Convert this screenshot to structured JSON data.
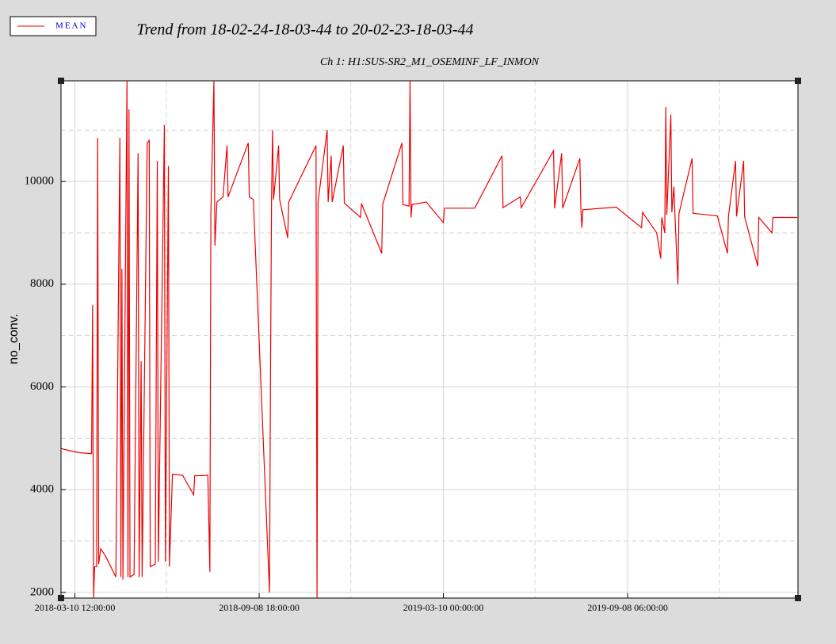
{
  "chart_data": {
    "type": "line",
    "title": "Trend from 18-02-24-18-03-44 to 20-02-23-18-03-44",
    "subtitle": "Ch 1: H1:SUS-SR2_M1_OSEMINF_LF_INMON",
    "y_label": "no_conv.",
    "xlim": [
      "2018-02-24 18:03:44",
      "2020-02-23 18:03:44"
    ],
    "xticks": [
      "2018-03-10 12:00:00",
      "2018-09-08 18:00:00",
      "2019-03-10 00:00:00",
      "2019-09-08 06:00:00"
    ],
    "xminorticks": [
      "2018-06-09 03:00:00",
      "2018-12-08 09:00:00",
      "2019-06-08 15:00:00",
      "2019-12-07 21:00:00"
    ],
    "ylim": [
      1890,
      11960
    ],
    "yticks": [
      2000,
      4000,
      6000,
      8000,
      10000
    ],
    "yminorticks": [
      3000,
      5000,
      7000,
      9000,
      11000
    ],
    "grid": true,
    "legend": "top-left",
    "x": [
      "2018-02-25",
      "2018-03-05",
      "2018-03-15",
      "2018-03-27",
      "2018-03-28",
      "2018-03-29",
      "2018-03-30",
      "2018-04-01",
      "2018-04-02",
      "2018-04-03",
      "2018-04-05",
      "2018-04-10",
      "2018-04-15",
      "2018-04-20",
      "2018-04-24",
      "2018-04-25",
      "2018-04-26",
      "2018-04-27",
      "2018-05-01",
      "2018-05-02",
      "2018-05-03",
      "2018-05-04",
      "2018-05-08",
      "2018-05-12",
      "2018-05-13",
      "2018-05-15",
      "2018-05-16",
      "2018-05-21",
      "2018-05-23",
      "2018-05-24",
      "2018-05-29",
      "2018-05-31",
      "2018-06-01",
      "2018-06-07",
      "2018-06-08",
      "2018-06-11",
      "2018-06-12",
      "2018-06-15",
      "2018-06-25",
      "2018-07-06",
      "2018-07-07",
      "2018-07-20",
      "2018-07-22",
      "2018-07-23",
      "2018-07-26",
      "2018-07-27",
      "2018-07-29",
      "2018-08-04",
      "2018-08-08",
      "2018-08-09",
      "2018-08-29",
      "2018-08-30",
      "2018-09-03",
      "2018-09-19",
      "2018-09-20",
      "2018-09-21",
      "2018-09-22",
      "2018-09-23",
      "2018-09-28",
      "2018-09-29",
      "2018-10-07",
      "2018-10-08",
      "2018-11-04",
      "2018-11-05",
      "2018-11-06",
      "2018-11-15",
      "2018-11-16",
      "2018-11-19",
      "2018-11-20",
      "2018-12-01",
      "2018-12-02",
      "2018-12-18",
      "2018-12-19",
      "2019-01-08",
      "2019-01-09",
      "2019-01-28",
      "2019-01-29",
      "2019-02-04",
      "2019-02-05",
      "2019-02-06",
      "2019-02-07",
      "2019-02-21",
      "2019-03-10",
      "2019-03-11",
      "2019-04-10",
      "2019-05-07",
      "2019-05-08",
      "2019-05-25",
      "2019-05-26",
      "2019-06-27",
      "2019-06-28",
      "2019-07-05",
      "2019-07-06",
      "2019-07-23",
      "2019-07-24",
      "2019-07-25",
      "2019-07-26",
      "2019-08-28",
      "2019-09-22",
      "2019-09-23",
      "2019-10-07",
      "2019-10-11",
      "2019-10-12",
      "2019-10-15",
      "2019-10-16",
      "2019-10-17",
      "2019-10-21",
      "2019-10-22",
      "2019-10-24",
      "2019-10-25",
      "2019-10-28",
      "2019-10-29",
      "2019-11-11",
      "2019-11-12",
      "2019-12-06",
      "2019-12-16",
      "2019-12-17",
      "2019-12-24",
      "2019-12-25",
      "2020-01-01",
      "2020-01-02",
      "2020-01-15",
      "2020-01-16",
      "2020-01-29",
      "2020-01-30",
      "2020-02-23"
    ],
    "series": [
      {
        "name": "MEAN",
        "color": "#ee0000",
        "values": [
          4800,
          4760,
          4720,
          4700,
          7600,
          1900,
          2500,
          2500,
          10850,
          2550,
          2850,
          2700,
          2500,
          2300,
          10850,
          2300,
          8300,
          2250,
          11950,
          2300,
          11400,
          2300,
          2350,
          10550,
          2300,
          6500,
          2300,
          10750,
          10800,
          2500,
          2550,
          10400,
          2600,
          11100,
          2600,
          10300,
          2500,
          4300,
          4280,
          3900,
          4270,
          4280,
          2400,
          9400,
          11950,
          8750,
          9600,
          9700,
          10700,
          9700,
          10750,
          9700,
          9650,
          2000,
          6300,
          9650,
          11000,
          9650,
          10700,
          9650,
          8900,
          9600,
          10700,
          1900,
          9600,
          11000,
          9600,
          10500,
          9600,
          10700,
          9580,
          9300,
          9570,
          8600,
          9560,
          10750,
          9550,
          9520,
          11950,
          9300,
          9550,
          9600,
          9200,
          9480,
          9480,
          10500,
          9490,
          9700,
          9490,
          10600,
          9480,
          10550,
          9480,
          10450,
          9460,
          9100,
          9450,
          9500,
          9100,
          9400,
          9000,
          8500,
          9300,
          9000,
          11450,
          9350,
          11300,
          9400,
          9900,
          9380,
          8000,
          9370,
          10450,
          9380,
          9330,
          8600,
          9320,
          10400,
          9320,
          10400,
          9310,
          8350,
          9300,
          9000,
          9300,
          9300
        ]
      }
    ]
  }
}
